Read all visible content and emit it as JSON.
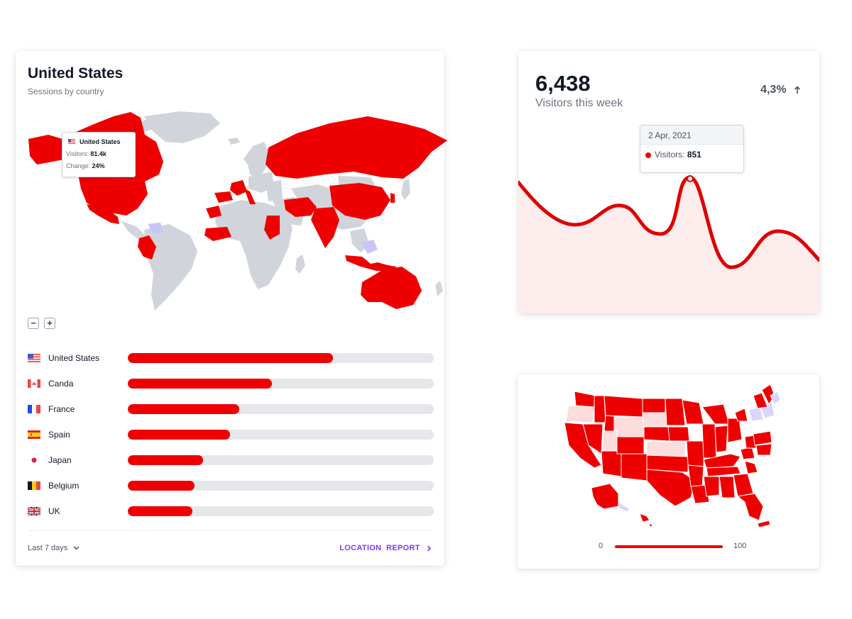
{
  "countries_card": {
    "title": "United States",
    "subtitle": "Sessions by country",
    "map_tooltip": {
      "country": "United States",
      "visitors_label": "Visitors:",
      "visitors_value": "81.4k",
      "change_label": "Change:",
      "change_value": "24%"
    },
    "zoom_out": "−",
    "zoom_in": "+",
    "rows": [
      {
        "name": "United States",
        "flag": "us-flag-icon",
        "value": 0.67
      },
      {
        "name": "Canda",
        "flag": "canada-flag-icon",
        "value": 0.47
      },
      {
        "name": "France",
        "flag": "france-flag-icon",
        "value": 0.365
      },
      {
        "name": "Spain",
        "flag": "spain-flag-icon",
        "value": 0.333
      },
      {
        "name": "Japan",
        "flag": "japan-flag-icon",
        "value": 0.245
      },
      {
        "name": "Belgium",
        "flag": "belgium-flag-icon",
        "value": 0.218
      },
      {
        "name": "UK",
        "flag": "uk-flag-icon",
        "value": 0.21
      }
    ],
    "range_select": "Last 7 days",
    "report_link": "LOCATION  REPORT"
  },
  "visitors_card": {
    "value": "6,438",
    "label": "Visitors this week",
    "change": "4,3%",
    "tooltip_date": "2 Apr, 2021",
    "tooltip_label": "Visitors:",
    "tooltip_value": "851"
  },
  "us_map_card": {
    "legend_min": "0",
    "legend_max": "100"
  },
  "colors": {
    "accent": "#ee0000",
    "light_fill": "#fde8e8",
    "land": "#d1d5db",
    "link": "#7c3aed"
  }
}
